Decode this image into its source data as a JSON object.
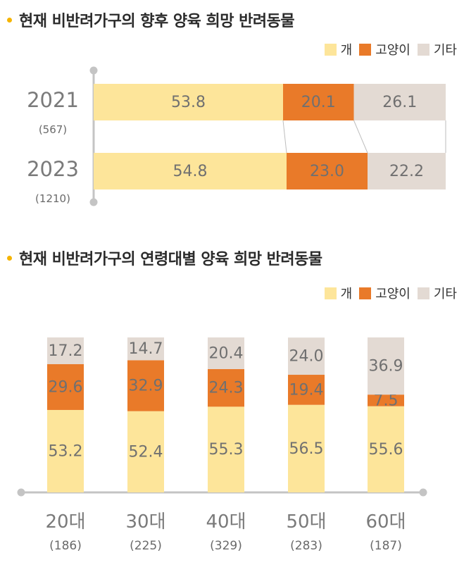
{
  "colors": {
    "dog": "#fde59a",
    "cat": "#e97a29",
    "other": "#e3dad3",
    "axis": "#c4c4c4",
    "bullet": "#f5b400"
  },
  "legend": {
    "dog": "개",
    "cat": "고양이",
    "other": "기타"
  },
  "chart_data": [
    {
      "type": "bar",
      "orientation": "horizontal",
      "stacked": true,
      "title": "현재 비반려가구의 향후 양육 희망 반려동물",
      "categories": [
        "2021",
        "2023"
      ],
      "counts": [
        "(567)",
        "(1210)"
      ],
      "series": [
        {
          "name": "개",
          "key": "dog",
          "values": [
            53.8,
            54.8
          ],
          "labels": [
            "53.8",
            "54.8"
          ]
        },
        {
          "name": "고양이",
          "key": "cat",
          "values": [
            20.1,
            23.0
          ],
          "labels": [
            "20.1",
            "23.0"
          ]
        },
        {
          "name": "기타",
          "key": "other",
          "values": [
            26.1,
            22.2
          ],
          "labels": [
            "26.1",
            "22.2"
          ]
        }
      ],
      "xlim": [
        0,
        100
      ]
    },
    {
      "type": "bar",
      "orientation": "vertical",
      "stacked": true,
      "title": "현재 비반려가구의 연령대별 양육 희망 반려동물",
      "categories": [
        "20대",
        "30대",
        "40대",
        "50대",
        "60대"
      ],
      "counts": [
        "(186)",
        "(225)",
        "(329)",
        "(283)",
        "(187)"
      ],
      "series": [
        {
          "name": "개",
          "key": "dog",
          "values": [
            53.2,
            52.4,
            55.3,
            56.5,
            55.6
          ],
          "labels": [
            "53.2",
            "52.4",
            "55.3",
            "56.5",
            "55.6"
          ]
        },
        {
          "name": "고양이",
          "key": "cat",
          "values": [
            29.6,
            32.9,
            24.3,
            19.4,
            7.5
          ],
          "labels": [
            "29.6",
            "32.9",
            "24.3",
            "19.4",
            "7.5"
          ]
        },
        {
          "name": "기타",
          "key": "other",
          "values": [
            17.2,
            14.7,
            20.4,
            24.0,
            36.9
          ],
          "labels": [
            "17.2",
            "14.7",
            "20.4",
            "24.0",
            "36.9"
          ]
        }
      ],
      "ylim": [
        0,
        100
      ]
    }
  ]
}
